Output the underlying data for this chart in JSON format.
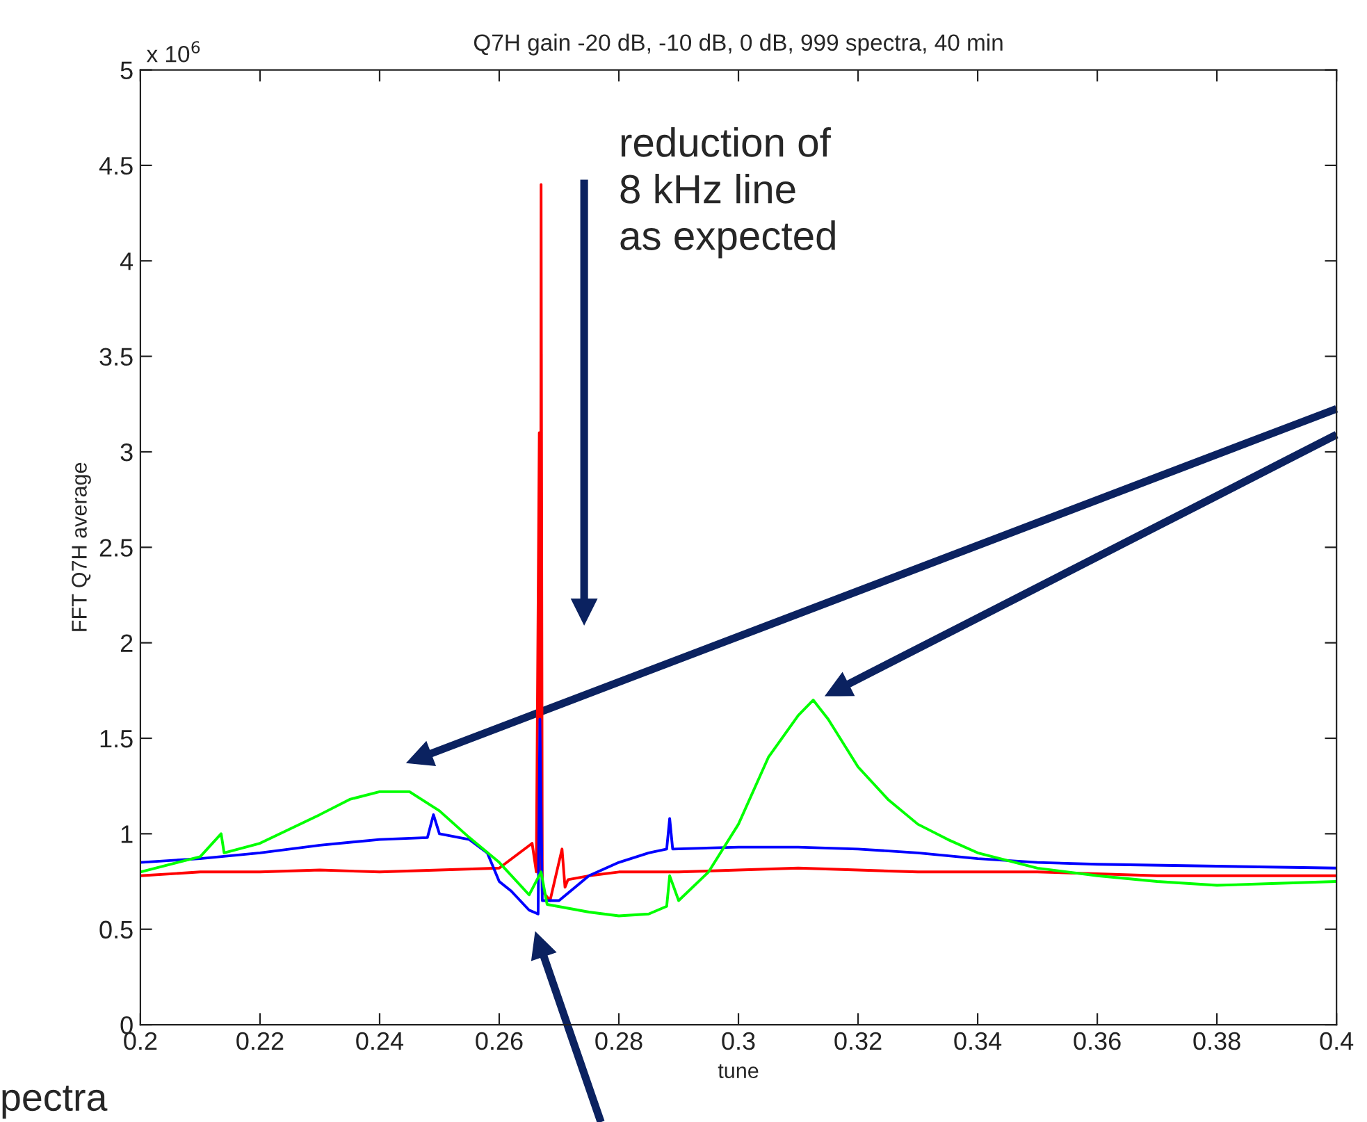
{
  "chart_data": {
    "type": "line",
    "title": "Q7H gain -20 dB, -10 dB, 0 dB, 999 spectra, 40 min",
    "xlabel": "tune",
    "ylabel": "FFT Q7H average",
    "xlim": [
      0.2,
      0.4
    ],
    "xticks": [
      0.2,
      0.22,
      0.24,
      0.26,
      0.28,
      0.3,
      0.32,
      0.34,
      0.36,
      0.38,
      0.4
    ],
    "ylim": [
      0,
      5
    ],
    "yticks": [
      0,
      0.5,
      1,
      1.5,
      2,
      2.5,
      3,
      3.5,
      4,
      4.5,
      5
    ],
    "grid": false,
    "marker": "none",
    "line_style": "solid",
    "annotations": [
      "x 10$^{6}$",
      "reduction of\n8 kHz line\nas expected",
      "pectra"
    ],
    "series": [
      {
        "color": "#ff0000",
        "x": [
          0.2,
          0.21,
          0.22,
          0.23,
          0.24,
          0.25,
          0.26,
          0.2655,
          0.2662,
          0.2667,
          0.2669,
          0.267,
          0.2672,
          0.2685,
          0.2705,
          0.271,
          0.2715,
          0.275,
          0.28,
          0.29,
          0.3,
          0.31,
          0.32,
          0.33,
          0.34,
          0.35,
          0.36,
          0.37,
          0.38,
          0.39,
          0.4
        ],
        "values": [
          0.78,
          0.8,
          0.8,
          0.81,
          0.8,
          0.81,
          0.82,
          0.95,
          0.8,
          3.1,
          0.8,
          4.4,
          0.7,
          0.65,
          0.92,
          0.72,
          0.76,
          0.78,
          0.8,
          0.8,
          0.81,
          0.82,
          0.81,
          0.8,
          0.8,
          0.8,
          0.79,
          0.78,
          0.78,
          0.78,
          0.78
        ]
      },
      {
        "color": "#0000ff",
        "x": [
          0.2,
          0.21,
          0.22,
          0.23,
          0.24,
          0.248,
          0.249,
          0.25,
          0.255,
          0.258,
          0.26,
          0.262,
          0.265,
          0.2665,
          0.2668,
          0.2672,
          0.27,
          0.275,
          0.28,
          0.285,
          0.288,
          0.2885,
          0.289,
          0.3,
          0.31,
          0.32,
          0.33,
          0.34,
          0.35,
          0.36,
          0.38,
          0.4
        ],
        "values": [
          0.85,
          0.87,
          0.9,
          0.94,
          0.97,
          0.98,
          1.1,
          1.0,
          0.97,
          0.9,
          0.75,
          0.7,
          0.6,
          0.58,
          1.6,
          0.65,
          0.65,
          0.78,
          0.85,
          0.9,
          0.92,
          1.08,
          0.92,
          0.93,
          0.93,
          0.92,
          0.9,
          0.87,
          0.85,
          0.84,
          0.83,
          0.82
        ]
      },
      {
        "color": "#00ff00",
        "x": [
          0.2,
          0.21,
          0.2135,
          0.214,
          0.22,
          0.23,
          0.235,
          0.24,
          0.245,
          0.25,
          0.255,
          0.26,
          0.265,
          0.267,
          0.268,
          0.275,
          0.28,
          0.285,
          0.288,
          0.2885,
          0.29,
          0.295,
          0.3,
          0.305,
          0.31,
          0.3125,
          0.315,
          0.32,
          0.325,
          0.33,
          0.335,
          0.34,
          0.35,
          0.36,
          0.37,
          0.38,
          0.39,
          0.4
        ],
        "values": [
          0.8,
          0.88,
          1.0,
          0.9,
          0.95,
          1.1,
          1.18,
          1.22,
          1.22,
          1.12,
          0.98,
          0.85,
          0.68,
          0.8,
          0.63,
          0.59,
          0.57,
          0.58,
          0.62,
          0.78,
          0.65,
          0.8,
          1.05,
          1.4,
          1.62,
          1.7,
          1.6,
          1.35,
          1.18,
          1.05,
          0.97,
          0.9,
          0.82,
          0.78,
          0.75,
          0.73,
          0.74,
          0.75
        ]
      }
    ]
  }
}
